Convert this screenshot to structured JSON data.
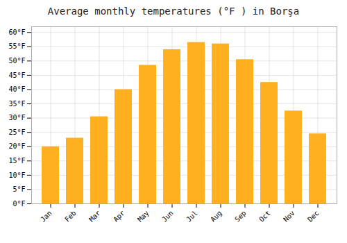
{
  "chart_data": {
    "type": "bar",
    "title": "Average monthly temperatures (°F ) in Borşa",
    "categories": [
      "Jan",
      "Feb",
      "Mar",
      "Apr",
      "May",
      "Jun",
      "Jul",
      "Aug",
      "Sep",
      "Oct",
      "Nov",
      "Dec"
    ],
    "values": [
      20,
      23,
      30.5,
      40,
      48.5,
      54,
      56.5,
      56,
      50.5,
      42.5,
      32.5,
      24.5
    ],
    "color": "#FFB020",
    "ylim": [
      0,
      62
    ],
    "yticks": [
      {
        "value": 0,
        "label": "0°F"
      },
      {
        "value": 5,
        "label": "5°F"
      },
      {
        "value": 10,
        "label": "10°F"
      },
      {
        "value": 15,
        "label": "15°F"
      },
      {
        "value": 20,
        "label": "20°F"
      },
      {
        "value": 25,
        "label": "25°F"
      },
      {
        "value": 30,
        "label": "30°F"
      },
      {
        "value": 35,
        "label": "35°F"
      },
      {
        "value": 40,
        "label": "40°F"
      },
      {
        "value": 45,
        "label": "45°F"
      },
      {
        "value": 50,
        "label": "50°F"
      },
      {
        "value": 55,
        "label": "55°F"
      },
      {
        "value": 60,
        "label": "60°F"
      }
    ],
    "grid": true
  }
}
